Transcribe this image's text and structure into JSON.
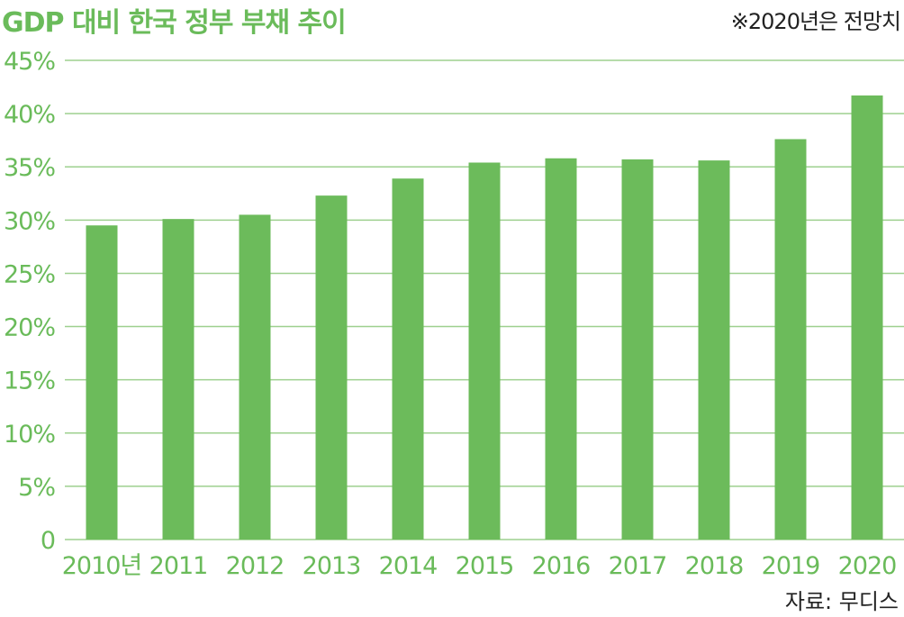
{
  "title": "GDP 대비 한국 정부 부채 추이",
  "note": "※2020년은 전망치",
  "source": "자료: 무디스",
  "colors": {
    "bar": "#6cbb5b",
    "grid": "#9ed08f",
    "axis_text": "#6abb5a",
    "text": "#222222"
  },
  "chart_data": {
    "type": "bar",
    "title": "GDP 대비 한국 정부 부채 추이",
    "xlabel": "",
    "ylabel": "",
    "categories": [
      "2010년",
      "2011",
      "2012",
      "2013",
      "2014",
      "2015",
      "2016",
      "2017",
      "2018",
      "2019",
      "2020"
    ],
    "values": [
      29.5,
      30.1,
      30.5,
      32.3,
      33.9,
      35.4,
      35.8,
      35.7,
      35.6,
      37.6,
      41.7
    ],
    "ylim": [
      0,
      45
    ],
    "yticks": [
      0,
      5,
      10,
      15,
      20,
      25,
      30,
      35,
      40,
      45
    ],
    "ytick_labels": [
      "0",
      "5%",
      "10%",
      "15%",
      "20%",
      "25%",
      "30%",
      "35%",
      "40%",
      "45%"
    ],
    "grid": true,
    "legend": "none"
  }
}
